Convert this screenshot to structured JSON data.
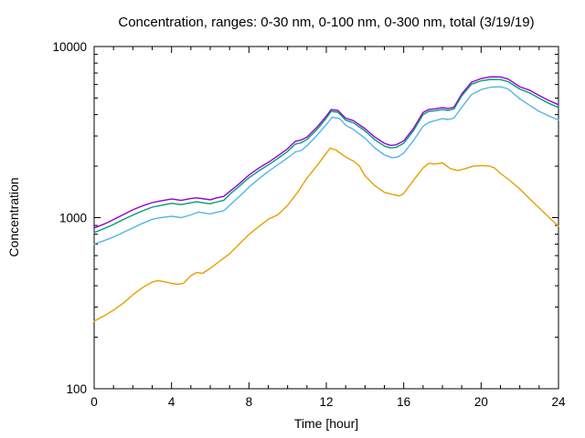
{
  "chart_data": {
    "type": "line",
    "title": "Concentration, ranges: 0-30 nm, 0-100 nm, 0-300 nm, total (3/19/19)",
    "xlabel": "Time [hour]",
    "ylabel": "Concentration",
    "x_range": [
      0,
      24
    ],
    "y_range": [
      100,
      10000
    ],
    "y_scale": "log",
    "x_major_ticks": [
      0,
      4,
      8,
      12,
      16,
      20,
      24
    ],
    "x_tick_labels": [
      "0",
      "4",
      "8",
      "12",
      "16",
      "20",
      "24"
    ],
    "x_minor_step": 1,
    "y_major_ticks": [
      100,
      1000,
      10000
    ],
    "y_tick_labels": [
      "100",
      "1000",
      "10000"
    ],
    "y_minor_ticks": [
      200,
      300,
      400,
      500,
      600,
      700,
      800,
      900,
      2000,
      3000,
      4000,
      5000,
      6000,
      7000,
      8000,
      9000
    ],
    "grid": false,
    "legend_position": "none",
    "axis_color": "#000000",
    "background": "#ffffff",
    "series": [
      {
        "name": "total",
        "color": "#9400d3",
        "points": [
          [
            0,
            870
          ],
          [
            0.5,
            915
          ],
          [
            1,
            975
          ],
          [
            1.5,
            1040
          ],
          [
            2,
            1112
          ],
          [
            2.5,
            1172
          ],
          [
            3,
            1225
          ],
          [
            3.5,
            1256
          ],
          [
            4,
            1285
          ],
          [
            4.5,
            1262
          ],
          [
            5,
            1292
          ],
          [
            5.3,
            1306
          ],
          [
            5.7,
            1286
          ],
          [
            6,
            1272
          ],
          [
            6.3,
            1300
          ],
          [
            6.7,
            1332
          ],
          [
            7,
            1420
          ],
          [
            7.5,
            1580
          ],
          [
            8,
            1772
          ],
          [
            8.5,
            1945
          ],
          [
            9,
            2105
          ],
          [
            9.5,
            2300
          ],
          [
            10,
            2530
          ],
          [
            10.4,
            2790
          ],
          [
            10.7,
            2845
          ],
          [
            11,
            2955
          ],
          [
            11.5,
            3360
          ],
          [
            12,
            3920
          ],
          [
            12.25,
            4280
          ],
          [
            12.6,
            4235
          ],
          [
            13,
            3810
          ],
          [
            13.4,
            3690
          ],
          [
            14,
            3310
          ],
          [
            14.5,
            2960
          ],
          [
            15,
            2720
          ],
          [
            15.3,
            2645
          ],
          [
            15.6,
            2660
          ],
          [
            16,
            2810
          ],
          [
            16.5,
            3320
          ],
          [
            17,
            4120
          ],
          [
            17.3,
            4290
          ],
          [
            17.6,
            4320
          ],
          [
            18,
            4395
          ],
          [
            18.3,
            4345
          ],
          [
            18.6,
            4425
          ],
          [
            19,
            5280
          ],
          [
            19.5,
            6190
          ],
          [
            20,
            6500
          ],
          [
            20.5,
            6650
          ],
          [
            21,
            6640
          ],
          [
            21.4,
            6450
          ],
          [
            22,
            5820
          ],
          [
            22.5,
            5560
          ],
          [
            23,
            5180
          ],
          [
            23.5,
            4840
          ],
          [
            24,
            4570
          ]
        ]
      },
      {
        "name": "0-300 nm",
        "color": "#009e73",
        "points": [
          [
            0,
            818
          ],
          [
            0.5,
            862
          ],
          [
            1,
            912
          ],
          [
            1.5,
            975
          ],
          [
            2,
            1035
          ],
          [
            2.5,
            1095
          ],
          [
            3,
            1152
          ],
          [
            3.5,
            1182
          ],
          [
            4,
            1212
          ],
          [
            4.5,
            1192
          ],
          [
            5,
            1222
          ],
          [
            5.3,
            1238
          ],
          [
            5.7,
            1216
          ],
          [
            6,
            1205
          ],
          [
            6.3,
            1232
          ],
          [
            6.7,
            1262
          ],
          [
            7,
            1368
          ],
          [
            7.5,
            1525
          ],
          [
            8,
            1708
          ],
          [
            8.5,
            1872
          ],
          [
            9,
            2030
          ],
          [
            9.5,
            2220
          ],
          [
            10,
            2440
          ],
          [
            10.4,
            2690
          ],
          [
            10.7,
            2742
          ],
          [
            11,
            2860
          ],
          [
            11.5,
            3255
          ],
          [
            12,
            3820
          ],
          [
            12.25,
            4180
          ],
          [
            12.6,
            4132
          ],
          [
            13,
            3710
          ],
          [
            13.4,
            3580
          ],
          [
            14,
            3210
          ],
          [
            14.5,
            2860
          ],
          [
            15,
            2620
          ],
          [
            15.3,
            2555
          ],
          [
            15.6,
            2570
          ],
          [
            16,
            2720
          ],
          [
            16.5,
            3220
          ],
          [
            17,
            4000
          ],
          [
            17.3,
            4180
          ],
          [
            17.6,
            4210
          ],
          [
            18,
            4280
          ],
          [
            18.3,
            4235
          ],
          [
            18.6,
            4320
          ],
          [
            19,
            5150
          ],
          [
            19.5,
            6020
          ],
          [
            20,
            6300
          ],
          [
            20.5,
            6430
          ],
          [
            21,
            6415
          ],
          [
            21.4,
            6230
          ],
          [
            22,
            5640
          ],
          [
            22.5,
            5360
          ],
          [
            23,
            4990
          ],
          [
            23.5,
            4660
          ],
          [
            24,
            4400
          ]
        ]
      },
      {
        "name": "0-100 nm",
        "color": "#56b4e9",
        "points": [
          [
            0,
            700
          ],
          [
            0.5,
            733
          ],
          [
            1,
            770
          ],
          [
            1.5,
            820
          ],
          [
            2,
            872
          ],
          [
            2.5,
            926
          ],
          [
            3,
            978
          ],
          [
            3.5,
            1003
          ],
          [
            4,
            1018
          ],
          [
            4.5,
            1000
          ],
          [
            5,
            1038
          ],
          [
            5.4,
            1078
          ],
          [
            5.8,
            1058
          ],
          [
            6,
            1052
          ],
          [
            6.3,
            1072
          ],
          [
            6.7,
            1098
          ],
          [
            7,
            1178
          ],
          [
            7.5,
            1332
          ],
          [
            8,
            1506
          ],
          [
            8.5,
            1682
          ],
          [
            9,
            1861
          ],
          [
            9.5,
            2042
          ],
          [
            10,
            2234
          ],
          [
            10.4,
            2420
          ],
          [
            10.7,
            2465
          ],
          [
            11,
            2632
          ],
          [
            11.5,
            3010
          ],
          [
            12,
            3500
          ],
          [
            12.3,
            3860
          ],
          [
            12.7,
            3795
          ],
          [
            13,
            3465
          ],
          [
            13.4,
            3280
          ],
          [
            14,
            2915
          ],
          [
            14.5,
            2560
          ],
          [
            15,
            2325
          ],
          [
            15.4,
            2242
          ],
          [
            15.7,
            2262
          ],
          [
            16,
            2385
          ],
          [
            16.5,
            2820
          ],
          [
            17,
            3420
          ],
          [
            17.3,
            3605
          ],
          [
            17.6,
            3685
          ],
          [
            18,
            3790
          ],
          [
            18.3,
            3745
          ],
          [
            18.6,
            3825
          ],
          [
            19,
            4420
          ],
          [
            19.5,
            5230
          ],
          [
            20,
            5600
          ],
          [
            20.5,
            5790
          ],
          [
            21,
            5815
          ],
          [
            21.4,
            5650
          ],
          [
            22,
            4950
          ],
          [
            22.5,
            4540
          ],
          [
            23,
            4180
          ],
          [
            23.5,
            3930
          ],
          [
            24,
            3720
          ]
        ]
      },
      {
        "name": "0-30 nm",
        "color": "#e69f00",
        "points": [
          [
            0,
            248
          ],
          [
            0.5,
            266
          ],
          [
            1,
            288
          ],
          [
            1.5,
            316
          ],
          [
            2,
            354
          ],
          [
            2.5,
            390
          ],
          [
            3,
            420
          ],
          [
            3.3,
            428
          ],
          [
            3.6,
            423
          ],
          [
            4,
            413
          ],
          [
            4.3,
            408
          ],
          [
            4.6,
            412
          ],
          [
            5,
            458
          ],
          [
            5.3,
            478
          ],
          [
            5.6,
            472
          ],
          [
            6,
            505
          ],
          [
            6.5,
            558
          ],
          [
            7,
            615
          ],
          [
            7.5,
            700
          ],
          [
            8,
            797
          ],
          [
            8.5,
            885
          ],
          [
            9,
            978
          ],
          [
            9.5,
            1040
          ],
          [
            10,
            1180
          ],
          [
            10.5,
            1400
          ],
          [
            11,
            1700
          ],
          [
            11.5,
            2000
          ],
          [
            12,
            2380
          ],
          [
            12.2,
            2550
          ],
          [
            12.5,
            2480
          ],
          [
            13,
            2260
          ],
          [
            13.4,
            2140
          ],
          [
            13.7,
            2010
          ],
          [
            14,
            1760
          ],
          [
            14.3,
            1620
          ],
          [
            14.5,
            1540
          ],
          [
            15,
            1405
          ],
          [
            15.5,
            1360
          ],
          [
            15.8,
            1340
          ],
          [
            16,
            1385
          ],
          [
            16.5,
            1650
          ],
          [
            17,
            1950
          ],
          [
            17.3,
            2080
          ],
          [
            17.6,
            2055
          ],
          [
            18,
            2090
          ],
          [
            18.4,
            1935
          ],
          [
            18.8,
            1885
          ],
          [
            19.2,
            1935
          ],
          [
            19.6,
            2000
          ],
          [
            20,
            2015
          ],
          [
            20.4,
            2005
          ],
          [
            20.7,
            1950
          ],
          [
            21,
            1815
          ],
          [
            21.5,
            1645
          ],
          [
            22,
            1470
          ],
          [
            22.5,
            1290
          ],
          [
            23,
            1140
          ],
          [
            23.5,
            1005
          ],
          [
            24,
            892
          ]
        ]
      }
    ]
  }
}
